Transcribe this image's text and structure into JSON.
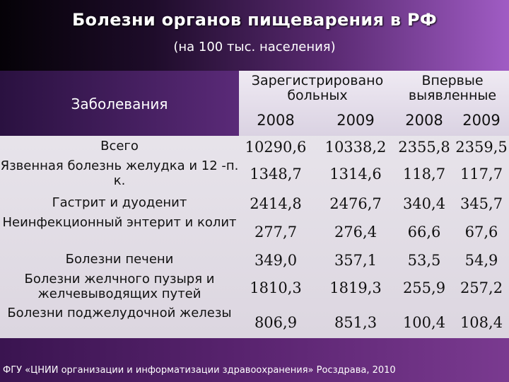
{
  "title": "Болезни органов пищеварения в РФ",
  "subtitle": "(на 100 тыс. населения)",
  "table": {
    "col_header_diseases": "Заболевания",
    "group_registered": "Зарегистрировано\nбольных",
    "group_first": "Впервые\nвыявленные",
    "years": [
      "2008",
      "2009",
      "2008",
      "2009"
    ],
    "rows": [
      {
        "label": "Всего",
        "values": [
          "10290,6",
          "10338,2",
          "2355,8",
          "2359,5"
        ]
      },
      {
        "label": "Язвенная болезнь желудка и 12 -п. к.",
        "values": [
          "1348,7",
          "1314,6",
          "118,7",
          "117,7"
        ]
      },
      {
        "label": "Гастрит и дуоденит",
        "values": [
          "2414,8",
          "2476,7",
          "340,4",
          "345,7"
        ]
      },
      {
        "label": "Неинфекционный энтерит и колит",
        "values": [
          "277,7",
          "276,4",
          "66,6",
          "67,6"
        ]
      },
      {
        "label": "Болезни печени",
        "values": [
          "349,0",
          "357,1",
          "53,5",
          "54,9"
        ]
      },
      {
        "label": "Болезни желчного пузыря и желчевыводящих путей",
        "values": [
          "1810,3",
          "1819,3",
          "255,9",
          "257,2"
        ]
      },
      {
        "label": "Болезни поджелудочной железы",
        "values": [
          "806,9",
          "851,3",
          "100,4",
          "108,4"
        ]
      }
    ]
  },
  "footer": "ФГУ «ЦНИИ организации и информатизации здравоохранения» Росздрава, 2010"
}
